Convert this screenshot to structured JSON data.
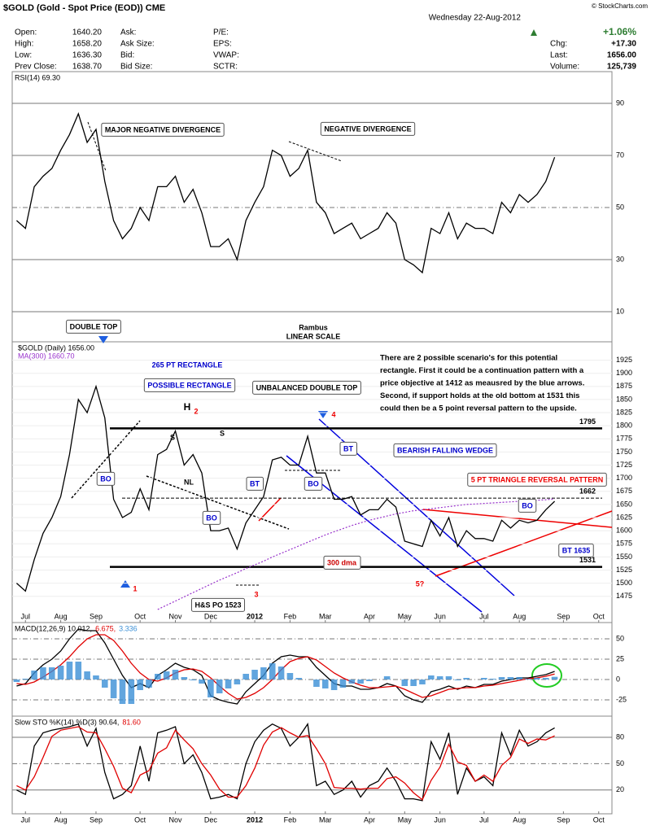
{
  "header": {
    "title": "$GOLD (Gold - Spot Price (EOD)) CME",
    "date": "Wednesday 22-Aug-2012",
    "credit": "© StockCharts.com",
    "fields": [
      [
        {
          "label": "Open:",
          "value": "1640.20"
        },
        {
          "label": "Ask:"
        },
        {
          "label": "P/E:"
        }
      ],
      [
        {
          "label": "High:",
          "value": "1658.20"
        },
        {
          "label": "Ask Size:"
        },
        {
          "label": "EPS:"
        }
      ],
      [
        {
          "label": "Low:",
          "value": "1636.30"
        },
        {
          "label": "Bid:"
        },
        {
          "label": "VWAP:"
        }
      ],
      [
        {
          "label": "Prev Close:",
          "value": "1638.70"
        },
        {
          "label": "Bid Size:"
        },
        {
          "label": "SCTR:"
        }
      ]
    ],
    "change_pct": "+1.06%",
    "right_fields": [
      {
        "label": "Chg:",
        "value": "+17.30"
      },
      {
        "label": "Last:",
        "value": "1656.00"
      },
      {
        "label": "Volume:",
        "value": "125,739"
      }
    ]
  },
  "chart_data": [
    {
      "type": "line",
      "series": [
        {
          "name": "RSI(14) 69.30",
          "color": "#000000",
          "values": [
            45,
            42,
            58,
            62,
            65,
            72,
            78,
            86,
            75,
            80,
            60,
            45,
            38,
            42,
            50,
            45,
            58,
            58,
            62,
            52,
            57,
            48,
            35,
            35,
            38,
            30,
            45,
            52,
            58,
            72,
            70,
            62,
            65,
            72,
            52,
            48,
            40,
            42,
            44,
            38,
            40,
            42,
            48,
            44,
            30,
            28,
            25,
            42,
            40,
            48,
            38,
            44,
            42,
            42,
            40,
            52,
            48,
            55,
            52,
            55,
            60,
            69.3,
            null,
            null,
            null,
            null,
            null,
            null
          ]
        }
      ],
      "ylim": [
        0,
        100
      ],
      "yticks": [
        10,
        30,
        50,
        70,
        90
      ],
      "annotations": [
        "MAJOR NEGATIVE DIVERGENCE",
        "NEGATIVE DIVERGENCE",
        "Rambus",
        "LINEAR SCALE"
      ]
    },
    {
      "type": "line",
      "categories": [
        null,
        "Jul",
        null,
        null,
        null,
        "Aug",
        null,
        null,
        null,
        "Sep",
        null,
        null,
        null,
        null,
        "Oct",
        null,
        null,
        null,
        "Nov",
        null,
        null,
        null,
        "Dec",
        null,
        null,
        null,
        null,
        "2012",
        null,
        null,
        null,
        "Feb",
        null,
        null,
        null,
        "Mar",
        null,
        null,
        null,
        null,
        "Apr",
        null,
        null,
        null,
        "May",
        null,
        null,
        null,
        "Jun",
        null,
        null,
        null,
        null,
        "Jul",
        null,
        null,
        null,
        "Aug",
        null,
        null,
        null,
        null,
        "Sep",
        null,
        null,
        null,
        "Oct",
        null
      ],
      "series": [
        {
          "name": "$GOLD (Daily) 1656.00",
          "color": "#000000",
          "values": [
            1500,
            1485,
            1545,
            1595,
            1625,
            1665,
            1745,
            1850,
            1825,
            1875,
            1815,
            1660,
            1625,
            1635,
            1680,
            1640,
            1745,
            1755,
            1790,
            1725,
            1745,
            1710,
            1600,
            1600,
            1605,
            1565,
            1615,
            1640,
            1665,
            1735,
            1740,
            1725,
            1725,
            1780,
            1710,
            1710,
            1660,
            1660,
            1665,
            1630,
            1640,
            1640,
            1660,
            1645,
            1580,
            1575,
            1570,
            1620,
            1590,
            1625,
            1570,
            1600,
            1585,
            1585,
            1580,
            1620,
            1605,
            1620,
            1615,
            1620,
            1640,
            1656,
            null,
            null,
            null,
            null,
            null,
            null
          ]
        },
        {
          "name": "MA(300) 1660.70",
          "color": "#9933cc",
          "values": [
            null,
            null,
            null,
            null,
            null,
            null,
            null,
            null,
            null,
            null,
            null,
            null,
            null,
            null,
            null,
            null,
            1450,
            1458,
            1466,
            1474,
            1482,
            1490,
            1498,
            1506,
            1513,
            1520,
            1528,
            1535,
            1542,
            1550,
            1557,
            1564,
            1571,
            1578,
            1585,
            1592,
            1598,
            1604,
            1610,
            1615,
            1620,
            1624,
            1628,
            1632,
            1635,
            1638,
            1640,
            1642,
            1644,
            1646,
            1648,
            1650,
            1651,
            1652,
            1653,
            1654,
            1655,
            1656,
            1657,
            1658,
            1659,
            1660.7,
            null,
            null,
            null,
            null,
            null,
            null
          ]
        }
      ],
      "ylim": [
        1425,
        1960
      ],
      "yticks": [
        1475,
        1500,
        1525,
        1550,
        1575,
        1600,
        1625,
        1650,
        1675,
        1700,
        1725,
        1750,
        1775,
        1800,
        1825,
        1850,
        1875,
        1900,
        1925
      ],
      "levels": [
        1795,
        1662,
        1531
      ],
      "annotations": [
        "DOUBLE TOP",
        "265 PT RECTANGLE",
        "POSSIBLE RECTANGLE",
        "UNBALANCED DOUBLE TOP",
        "H",
        "2",
        "S",
        "S",
        "NL",
        "BO",
        "BO",
        "BT",
        "BO",
        "BT",
        "BO",
        "4",
        "1",
        "3",
        "5?",
        "H&S PO 1523",
        "300 dma",
        "BEARISH FALLING WEDGE",
        "5 PT TRIANGLE REVERSAL PATTERN",
        "BT 1635"
      ],
      "paragraph": [
        "There are 2 possible scenario's for this potential",
        "rectangle. First it could be a continuation pattern with a",
        "price objective at 1412 as meausred by the blue arrows.",
        "Second, if support holds at the old bottom at 1531 this",
        "could then be a 5 point reversal pattern to the upside."
      ]
    },
    {
      "type": "line",
      "series": [
        {
          "name": "MACD(12,26,9) 10.012,",
          "color": "#000000",
          "values": [
            -8,
            -5,
            8,
            18,
            25,
            35,
            50,
            62,
            60,
            60,
            45,
            25,
            5,
            -10,
            -5,
            -10,
            5,
            12,
            20,
            15,
            12,
            5,
            -20,
            -25,
            -28,
            -30,
            -15,
            -5,
            5,
            20,
            28,
            30,
            28,
            28,
            15,
            5,
            -5,
            -8,
            -8,
            -12,
            -12,
            -10,
            -5,
            -8,
            -20,
            -25,
            -28,
            -15,
            -12,
            -8,
            -12,
            -8,
            -10,
            -6,
            -6,
            -2,
            0,
            2,
            2,
            4,
            6,
            10.012,
            null,
            null,
            null,
            null,
            null,
            null
          ]
        },
        {
          "name": "6.675,",
          "color": "#e00000",
          "values": [
            -5,
            -6,
            -3,
            3,
            10,
            18,
            28,
            40,
            50,
            55,
            55,
            48,
            35,
            20,
            8,
            0,
            -2,
            2,
            8,
            12,
            13,
            10,
            2,
            -8,
            -17,
            -24,
            -22,
            -17,
            -10,
            0,
            12,
            22,
            26,
            28,
            24,
            16,
            8,
            2,
            -3,
            -7,
            -10,
            -10,
            -9,
            -8,
            -12,
            -17,
            -22,
            -20,
            -16,
            -12,
            -11,
            -10,
            -10,
            -8,
            -7,
            -5,
            -3,
            -1,
            1,
            2,
            4,
            6.675,
            null,
            null,
            null,
            null,
            null,
            null
          ]
        },
        {
          "name": "3.336",
          "color": "#3a8fd6",
          "bars": true,
          "values": [
            -3,
            1,
            11,
            15,
            15,
            17,
            22,
            22,
            10,
            5,
            -10,
            -23,
            -30,
            -30,
            -13,
            -10,
            7,
            10,
            12,
            3,
            -1,
            -5,
            -22,
            -17,
            -11,
            -6,
            7,
            12,
            15,
            20,
            16,
            8,
            2,
            0,
            -9,
            -11,
            -13,
            -10,
            -5,
            -5,
            -2,
            0,
            4,
            0,
            -8,
            -8,
            -6,
            5,
            4,
            4,
            -1,
            2,
            0,
            2,
            1,
            3,
            3,
            3,
            1,
            2,
            2,
            3.336,
            null,
            null,
            null,
            null,
            null,
            null
          ]
        }
      ],
      "ylim": [
        -45,
        70
      ],
      "yticks": [
        -25,
        0,
        25,
        50
      ]
    },
    {
      "type": "line",
      "categories": [
        null,
        "Jul",
        null,
        null,
        null,
        "Aug",
        null,
        null,
        null,
        "Sep",
        null,
        null,
        null,
        null,
        "Oct",
        null,
        null,
        null,
        "Nov",
        null,
        null,
        null,
        "Dec",
        null,
        null,
        null,
        null,
        "2012",
        null,
        null,
        null,
        "Feb",
        null,
        null,
        null,
        "Mar",
        null,
        null,
        null,
        null,
        "Apr",
        null,
        null,
        null,
        "May",
        null,
        null,
        null,
        "Jun",
        null,
        null,
        null,
        null,
        "Jul",
        null,
        null,
        null,
        "Aug",
        null,
        null,
        null,
        null,
        "Sep",
        null,
        null,
        null,
        "Oct",
        null
      ],
      "series": [
        {
          "name": "Slow STO %K(14) %D(3) 90.64,",
          "color": "#000000",
          "values": [
            20,
            15,
            70,
            85,
            88,
            90,
            92,
            95,
            70,
            90,
            40,
            10,
            15,
            25,
            70,
            30,
            85,
            88,
            92,
            50,
            60,
            40,
            10,
            12,
            15,
            10,
            50,
            75,
            88,
            95,
            90,
            70,
            80,
            95,
            25,
            30,
            15,
            20,
            30,
            12,
            25,
            30,
            45,
            30,
            10,
            10,
            8,
            75,
            55,
            85,
            15,
            45,
            30,
            35,
            25,
            85,
            60,
            88,
            70,
            75,
            85,
            90.64,
            null,
            null,
            null,
            null,
            null,
            null
          ]
        },
        {
          "name": "81.60",
          "color": "#e00000",
          "values": [
            25,
            20,
            35,
            57,
            81,
            88,
            90,
            92,
            86,
            85,
            67,
            47,
            22,
            17,
            37,
            42,
            62,
            68,
            88,
            77,
            67,
            50,
            37,
            21,
            12,
            12,
            25,
            45,
            71,
            86,
            91,
            85,
            80,
            82,
            67,
            50,
            23,
            22,
            22,
            21,
            22,
            22,
            33,
            35,
            28,
            17,
            9,
            31,
            46,
            72,
            52,
            48,
            30,
            37,
            30,
            48,
            57,
            78,
            73,
            78,
            77,
            81.6,
            null,
            null,
            null,
            null,
            null,
            null
          ]
        }
      ],
      "ylim": [
        -7,
        104
      ],
      "yticks": [
        20,
        50,
        80
      ]
    }
  ]
}
